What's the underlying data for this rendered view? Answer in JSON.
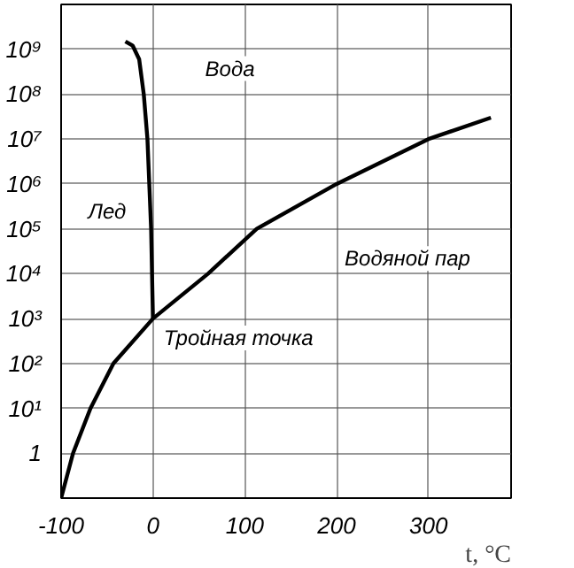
{
  "chart_data": {
    "type": "line",
    "xlabel": "t, °C",
    "log": "y",
    "xlim": [
      -100,
      390
    ],
    "ylim": [
      0.1,
      10000000000
    ],
    "xticks": [
      -100,
      0,
      100,
      200,
      300
    ],
    "yticks": [
      {
        "value": 0.1,
        "label": null
      },
      1,
      {
        "value": 10,
        "label": "10¹"
      },
      {
        "value": 100,
        "label": "10²"
      },
      {
        "value": 1000,
        "label": "10³"
      },
      {
        "value": 10000,
        "label": "10⁴"
      },
      {
        "value": 100000,
        "label": "10⁵"
      },
      {
        "value": 1000000,
        "label": "10⁶"
      },
      {
        "value": 10000000,
        "label": "10⁷"
      },
      {
        "value": 100000000,
        "label": "10⁸"
      },
      {
        "value": 1000000000,
        "label": "10⁹"
      },
      {
        "value": 10000000000,
        "label": null
      }
    ],
    "grid": true,
    "marker": "none",
    "line_style": "solid",
    "series": [
      {
        "color": "#000000",
        "x": [
          -100,
          -87,
          -68,
          -43,
          0,
          60,
          113,
          200,
          300,
          368
        ],
        "values": [
          0.1,
          1,
          10,
          100,
          1000,
          10000,
          100000,
          1000000,
          10000000,
          30000000
        ]
      },
      {
        "color": "#000000",
        "x": [
          0,
          -2,
          -6,
          -10,
          -15,
          -22,
          -30
        ],
        "values": [
          1000,
          100000,
          10000000,
          100000000,
          600000000,
          1200000000,
          1500000000
        ]
      }
    ],
    "annotations": [
      "Вода",
      "Лед",
      "Водяной пар",
      {
        "text": "Тройная точка",
        "x": 0,
        "y": 1000
      }
    ]
  }
}
